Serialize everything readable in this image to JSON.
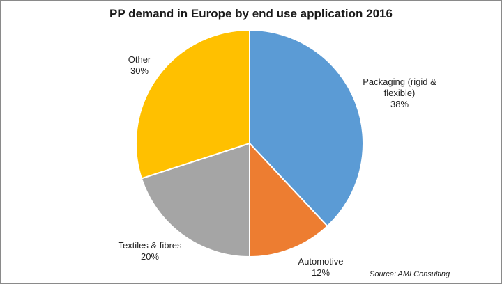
{
  "chart_data": {
    "type": "pie",
    "title": "PP demand in Europe by end use application 2016",
    "slices": [
      {
        "label": "Packaging (rigid & flexible)",
        "label_line1": "Packaging (rigid &",
        "label_line2": "flexible)",
        "value": 38,
        "display": "38%",
        "color": "#5b9bd5"
      },
      {
        "label": "Automotive",
        "label_line1": "Automotive",
        "label_line2": "",
        "value": 12,
        "display": "12%",
        "color": "#ed7d31"
      },
      {
        "label": "Textiles & fibres",
        "label_line1": "Textiles & fibres",
        "label_line2": "",
        "value": 20,
        "display": "20%",
        "color": "#a5a5a5"
      },
      {
        "label": "Other",
        "label_line1": "Other",
        "label_line2": "",
        "value": 30,
        "display": "30%",
        "color": "#ffc000"
      }
    ],
    "start_angle": "12 o'clock",
    "direction": "clockwise",
    "legend": "none",
    "source": "Source: AMI Consulting"
  }
}
